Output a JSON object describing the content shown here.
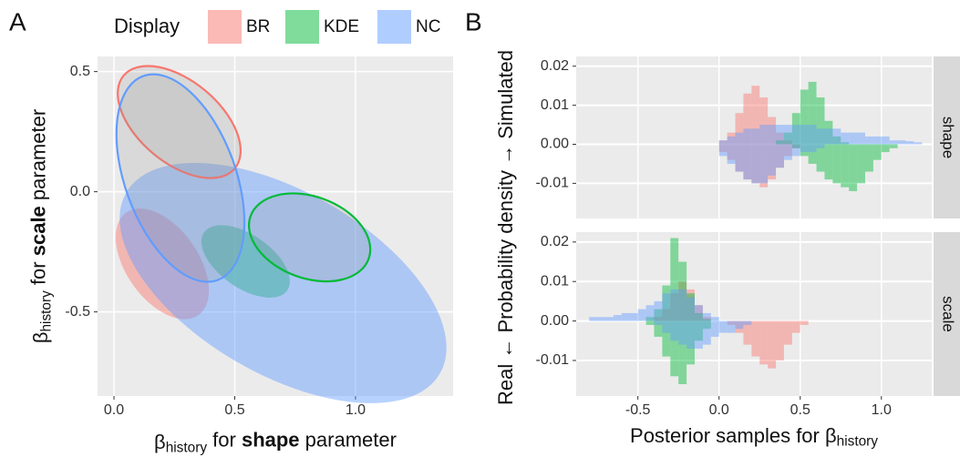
{
  "chart_data": [
    {
      "type": "ellipse",
      "panel_label": "A",
      "legend_title": "Display",
      "xlabel": {
        "symbol": "β",
        "subscript": "history",
        "text_before": " for ",
        "bold": "shape",
        "text_after": " parameter"
      },
      "ylabel": {
        "symbol": "β",
        "subscript": "history",
        "text_before": " for ",
        "bold": "scale",
        "text_after": " parameter"
      },
      "xlim": [
        -0.068,
        1.404
      ],
      "ylim": [
        -0.85,
        0.563
      ],
      "xticks": [
        {
          "value": 0,
          "label": "0.0"
        },
        0.5,
        {
          "value": 1,
          "label": "1.0"
        }
      ],
      "yticks": [
        -0.5,
        {
          "value": 0,
          "label": "0.0"
        },
        0.5
      ],
      "grid": true,
      "series": [
        {
          "name": "BR",
          "color": "#f8766d",
          "ellipses": [
            {
              "center": [
                0.2,
                -0.3
              ],
              "axes": [
                0.26,
                0.15
              ],
              "angle": -55,
              "filled": true
            },
            {
              "center": [
                0.27,
                0.29
              ],
              "axes": [
                0.3,
                0.17
              ],
              "angle": -40,
              "filled": false
            }
          ]
        },
        {
          "name": "KDE",
          "color": "#00ba38",
          "ellipses": [
            {
              "center": [
                0.545,
                -0.29
              ],
              "axes": [
                0.21,
                0.11
              ],
              "angle": -35,
              "filled": true
            },
            {
              "center": [
                0.81,
                -0.19
              ],
              "axes": [
                0.26,
                0.17
              ],
              "angle": -20,
              "filled": false
            }
          ]
        },
        {
          "name": "NC",
          "color": "#619cff",
          "ellipses": [
            {
              "center": [
                0.7,
                -0.38
              ],
              "axes": [
                0.75,
                0.38
              ],
              "angle": -30,
              "filled": true
            },
            {
              "center": [
                0.275,
                0.057
              ],
              "axes": [
                0.45,
                0.23
              ],
              "angle": -70,
              "filled": false
            }
          ]
        }
      ]
    },
    {
      "type": "histogram",
      "panel_label": "B",
      "ylabel": "Real ← Probability density → Simulated",
      "xlabel": {
        "text": "Posterior samples for ",
        "symbol": "β",
        "subscript": "history"
      },
      "xlim": [
        -0.88,
        1.31
      ],
      "ylim": [
        -0.019,
        0.0225
      ],
      "xticks": [
        -0.5,
        {
          "value": 0,
          "label": "0.0"
        },
        0.5,
        {
          "value": 1,
          "label": "1.0"
        }
      ],
      "yticks": [
        -0.01,
        {
          "value": 0,
          "label": "0.00"
        },
        0.01,
        0.02
      ],
      "grid": true,
      "facets": [
        {
          "strip": "shape",
          "bins": [
            0,
            0.05,
            0.1,
            0.15,
            0.2,
            0.25,
            0.3,
            0.35,
            0.4,
            0.45,
            0.5,
            0.55,
            0.6,
            0.65,
            0.7,
            0.75,
            0.8,
            0.85,
            0.9,
            0.95,
            1,
            1.05,
            1.1,
            1.15,
            1.2,
            1.25
          ],
          "series": [
            {
              "color": "#f8766d",
              "values": [
                0.001,
                0.003,
                0.008,
                0.013,
                0.015,
                0.012,
                0.007,
                0.003,
                0.001,
                0,
                0,
                0,
                0,
                0,
                0,
                0,
                0,
                0,
                0,
                0,
                0,
                0,
                0,
                0,
                0
              ]
            },
            {
              "color": "#00ba38",
              "values": [
                0,
                0,
                0,
                0,
                0,
                0,
                0,
                0.001,
                0.003,
                0.008,
                0.014,
                0.016,
                0.012,
                0.006,
                0.002,
                0.0005,
                0,
                0,
                0,
                0,
                0,
                0,
                0,
                0,
                0
              ]
            },
            {
              "color": "#619cff",
              "values": [
                0.001,
                0.002,
                0.003,
                0.004,
                0.004,
                0.005,
                0.005,
                0.005,
                0.005,
                0.005,
                0.005,
                0.005,
                0.004,
                0.004,
                0.004,
                0.003,
                0.003,
                0.003,
                0.002,
                0.002,
                0.002,
                0.001,
                0.001,
                0.0008,
                0.0005
              ]
            },
            {
              "color": "#f8766d",
              "values": [
                -0.002,
                -0.004,
                -0.007,
                -0.009,
                -0.01,
                -0.011,
                -0.009,
                -0.006,
                -0.003,
                -0.001,
                0,
                0,
                0,
                0,
                0,
                0,
                0,
                0,
                0,
                0,
                0,
                0,
                0,
                0,
                0
              ]
            },
            {
              "color": "#00ba38",
              "values": [
                0,
                0,
                0,
                0,
                0,
                0,
                0,
                0,
                0,
                -0.001,
                -0.003,
                -0.005,
                -0.007,
                -0.009,
                -0.01,
                -0.011,
                -0.012,
                -0.01,
                -0.007,
                -0.004,
                -0.002,
                -0.001,
                0,
                0,
                0
              ]
            },
            {
              "color": "#619cff",
              "values": [
                -0.003,
                -0.005,
                -0.007,
                -0.009,
                -0.01,
                -0.01,
                -0.008,
                -0.006,
                -0.004,
                -0.003,
                -0.002,
                -0.002,
                -0.001,
                0,
                0,
                0,
                0,
                0,
                0,
                0,
                0,
                0,
                0,
                0,
                0
              ]
            }
          ]
        },
        {
          "strip": "scale",
          "bins": [
            -0.8,
            -0.75,
            -0.7,
            -0.65,
            -0.6,
            -0.55,
            -0.5,
            -0.45,
            -0.4,
            -0.35,
            -0.3,
            -0.25,
            -0.2,
            -0.15,
            -0.1,
            -0.05,
            0,
            0.05,
            0.1,
            0.15,
            0.2,
            0.25,
            0.3,
            0.35,
            0.4,
            0.45,
            0.5,
            0.55,
            0.6
          ],
          "series": [
            {
              "color": "#f8766d",
              "values": [
                0,
                0,
                0,
                0,
                0,
                0,
                0,
                0,
                0.001,
                0.003,
                0.007,
                0.01,
                0.008,
                0.004,
                0.001,
                0,
                0,
                0,
                0,
                0,
                0,
                0,
                0,
                0,
                0,
                0,
                0,
                0
              ]
            },
            {
              "color": "#00ba38",
              "values": [
                0,
                0,
                0,
                0,
                0,
                0,
                0,
                0.001,
                0.003,
                0.009,
                0.021,
                0.015,
                0.007,
                0.002,
                0.0005,
                0,
                0,
                0,
                0,
                0,
                0,
                0,
                0,
                0,
                0,
                0,
                0,
                0
              ]
            },
            {
              "color": "#619cff",
              "values": [
                0.001,
                0.001,
                0.001,
                0.0015,
                0.002,
                0.002,
                0.003,
                0.004,
                0.005,
                0.007,
                0.008,
                0.008,
                0.006,
                0.004,
                0.002,
                0.001,
                0,
                0,
                0,
                0,
                0,
                0,
                0,
                0,
                0,
                0,
                0,
                0
              ]
            },
            {
              "color": "#f8766d",
              "values": [
                0,
                0,
                0,
                0,
                0,
                0,
                0,
                0,
                0,
                0,
                0,
                0,
                0,
                0,
                0,
                0,
                0,
                -0.001,
                -0.003,
                -0.006,
                -0.009,
                -0.011,
                -0.012,
                -0.01,
                -0.006,
                -0.003,
                -0.001,
                0
              ]
            },
            {
              "color": "#00ba38",
              "values": [
                0,
                0,
                0,
                0,
                0,
                0,
                0,
                -0.001,
                -0.004,
                -0.009,
                -0.014,
                -0.016,
                -0.011,
                -0.005,
                -0.002,
                0,
                0,
                0,
                0,
                0,
                0,
                0,
                0,
                0,
                0,
                0,
                0,
                0
              ]
            },
            {
              "color": "#619cff",
              "values": [
                0,
                0,
                0,
                0,
                0,
                0,
                0,
                0,
                -0.001,
                -0.003,
                -0.005,
                -0.006,
                -0.007,
                -0.007,
                -0.006,
                -0.004,
                -0.003,
                -0.003,
                -0.002,
                -0.001,
                0,
                0,
                0,
                0,
                0,
                0,
                0,
                0
              ]
            }
          ]
        }
      ]
    }
  ]
}
